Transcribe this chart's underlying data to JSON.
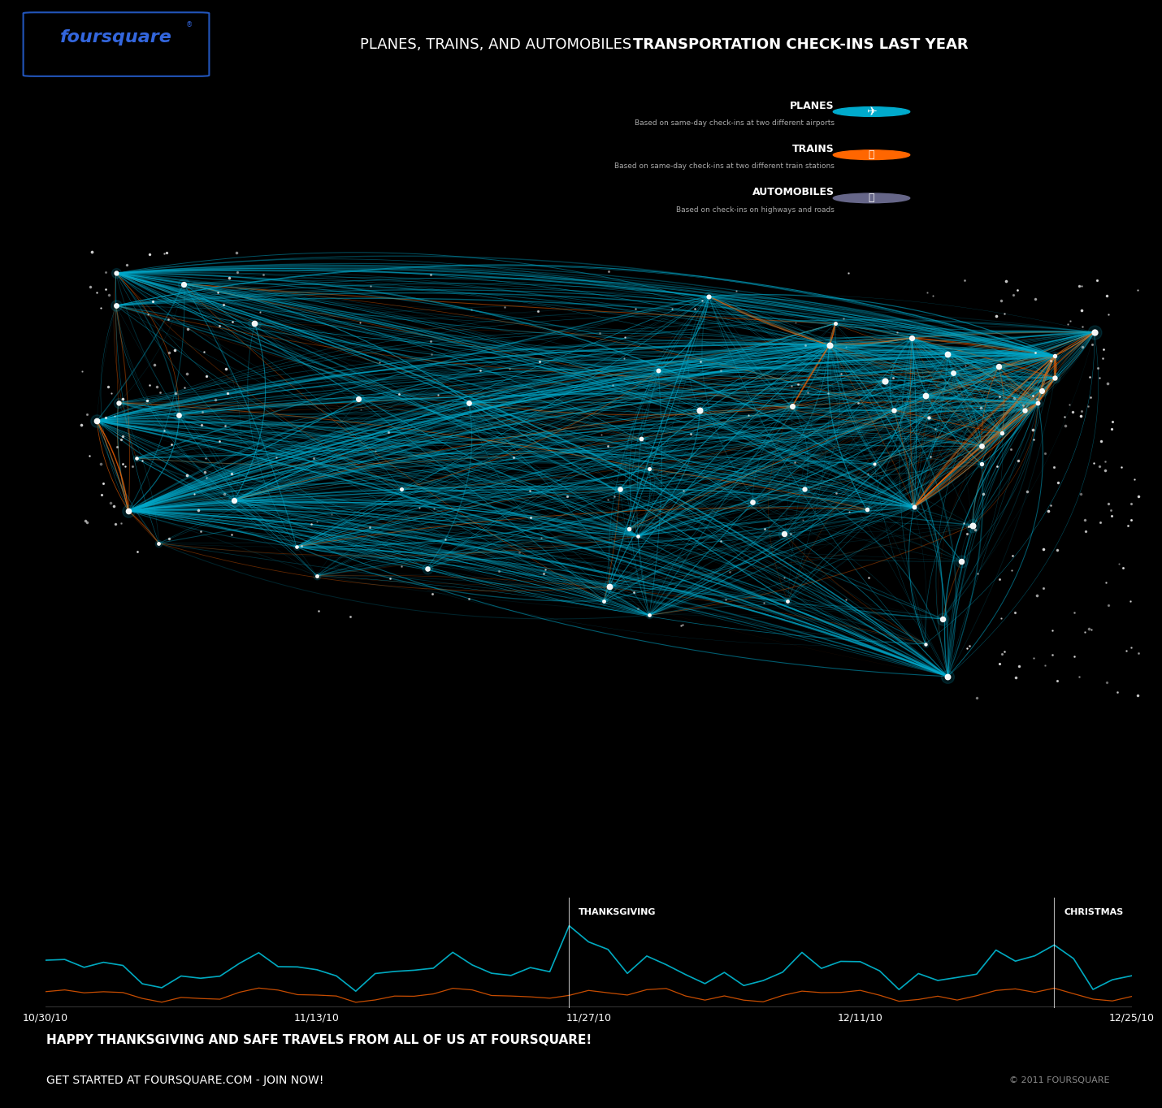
{
  "background_color": "#000000",
  "title_light": "PLANES, TRAINS, AND AUTOMOBILES",
  "title_bold": "  TRANSPORTATION CHECK-INS LAST YEAR",
  "foursquare_logo_color": "#2255cc",
  "legend": [
    {
      "label": "PLANES",
      "sublabel": "Based on same-day check-ins at two different airports",
      "icon_color": "#1a9db8"
    },
    {
      "label": "TRAINS",
      "sublabel": "Based on same-day check-ins at two different train stations",
      "icon_color": "#cc4400"
    },
    {
      "label": "AUTOMOBILES",
      "sublabel": "Based on check-ins on highways and roads",
      "icon_color": "#555577"
    }
  ],
  "timeline_dates": [
    "10/30/10",
    "11/13/10",
    "11/27/10",
    "12/11/10",
    "12/25/10"
  ],
  "thanksgiving_label": "THANKSGIVING",
  "christmas_label": "CHRISTMAS",
  "footer_line1": "HAPPY THANKSGIVING AND SAFE TRAVELS FROM ALL OF US AT FOURSQUARE!",
  "footer_line2": "GET STARTED AT FOURSQUARE.COM - JOIN NOW!",
  "copyright": "© 2011 FOURSQUARE",
  "plane_color": "#00b4cc",
  "train_color": "#dd5500",
  "node_color": "#ffffff",
  "map_plane_color": "#00aacc",
  "map_train_color": "#ff6600"
}
